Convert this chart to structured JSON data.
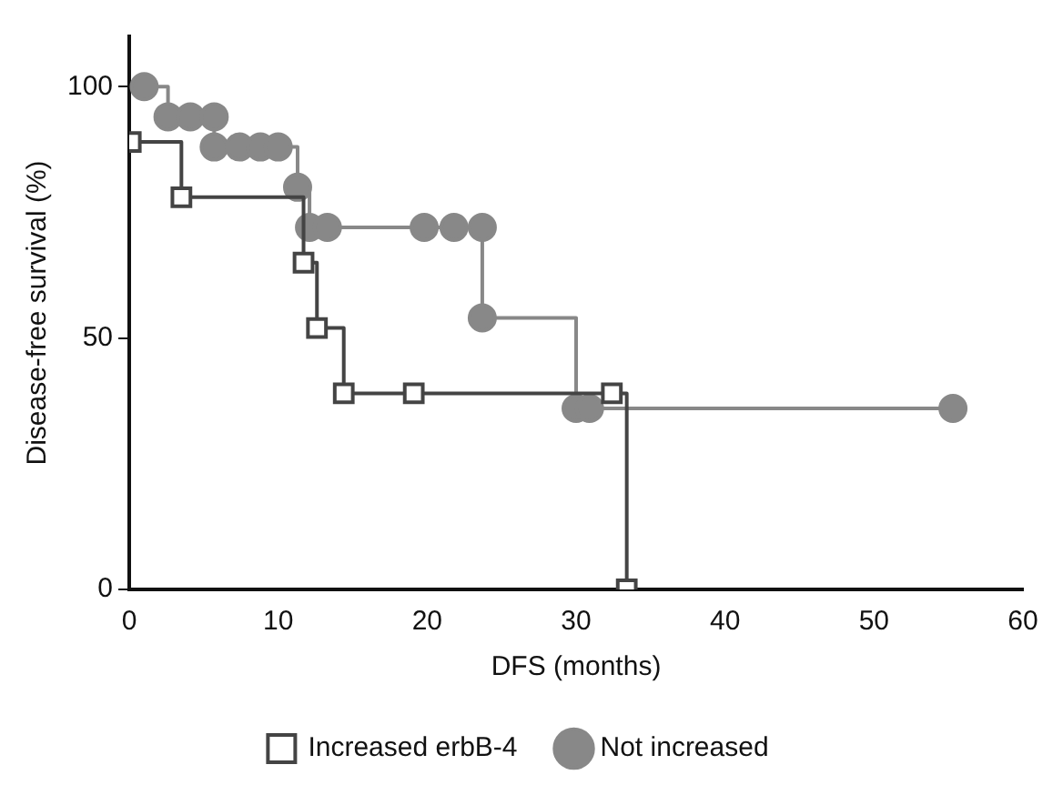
{
  "chart_data": {
    "type": "step",
    "xlabel": "DFS (months)",
    "ylabel": "Disease-free survival (%)",
    "xlim": [
      0,
      60
    ],
    "xticks": [
      0,
      10,
      20,
      30,
      40,
      50,
      60
    ],
    "ylim": [
      0,
      110
    ],
    "yticks": [
      0,
      50,
      100
    ],
    "grid": false,
    "legend": "bottom",
    "series": [
      {
        "name": "Increased erbB-4",
        "color": "#444444",
        "marker": "square",
        "x": [
          0.1,
          3.5,
          11.7,
          12.6,
          14.4,
          19.1,
          32.4,
          33.4
        ],
        "values": [
          89,
          78,
          65,
          52,
          39,
          39,
          39,
          0
        ]
      },
      {
        "name": "Not increased",
        "color": "#888888",
        "marker": "circle",
        "x": [
          1.0,
          2.6,
          4.1,
          5.7,
          5.7,
          7.4,
          8.8,
          10.0,
          11.3,
          12.1,
          13.3,
          19.8,
          21.8,
          23.7,
          23.7,
          30.0,
          30.9,
          55.3
        ],
        "values": [
          100,
          94,
          94,
          94,
          88,
          88,
          88,
          88,
          80,
          72,
          72,
          72,
          72,
          72,
          54,
          36,
          36,
          36
        ]
      }
    ]
  }
}
